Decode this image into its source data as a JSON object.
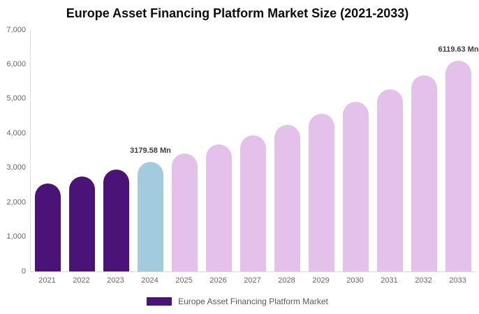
{
  "chart": {
    "title": "Europe Asset Financing Platform Market Size (2021-2033)",
    "legend_label": "Europe Asset Financing Platform Market"
  },
  "colors": {
    "bar_historical": "#4b1278",
    "bar_current": "#a3cbde",
    "bar_forecast": "#e4c1ea",
    "axis_line": "#d9d9d9",
    "tick_text": "#666666",
    "legend_text": "#595959",
    "value_label_text": "#3d3d3d",
    "title_text": "#0d0d0d"
  },
  "chart_data": {
    "type": "bar",
    "title": "Europe Asset Financing Platform Market Size (2021-2033)",
    "xlabel": "",
    "ylabel": "",
    "unit": "Mn",
    "categories": [
      "2021",
      "2022",
      "2023",
      "2024",
      "2025",
      "2026",
      "2027",
      "2028",
      "2029",
      "2030",
      "2031",
      "2032",
      "2033"
    ],
    "values": [
      2556,
      2749,
      2956,
      3179.58,
      3420,
      3678,
      3955,
      4253,
      4574,
      4920,
      5291,
      5690,
      6119.63
    ],
    "labeled_values": [
      {
        "category": "2024",
        "text": "3179.58 Mn",
        "value": 3179.58
      },
      {
        "category": "2033",
        "text": "6119.63 Mn",
        "value": 6119.63
      }
    ],
    "ylim": [
      0,
      7000
    ],
    "ytick_labels": [
      "0",
      "1,000",
      "2,000",
      "3,000",
      "4,000",
      "5,000",
      "6,000",
      "7,000"
    ],
    "bar_colors": [
      "#4b1278",
      "#4b1278",
      "#4b1278",
      "#a3cbde",
      "#e4c1ea",
      "#e4c1ea",
      "#e4c1ea",
      "#e4c1ea",
      "#e4c1ea",
      "#e4c1ea",
      "#e4c1ea",
      "#e4c1ea",
      "#e4c1ea"
    ],
    "grid": false,
    "legend_position": "bottom",
    "legend": [
      {
        "label": "Europe Asset Financing Platform Market",
        "color": "#4b1278"
      }
    ]
  }
}
